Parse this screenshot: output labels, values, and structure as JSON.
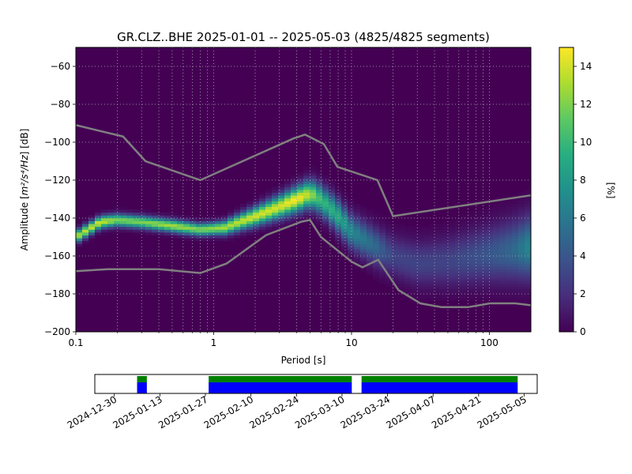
{
  "chart_data": [
    {
      "type": "heatmap",
      "title": "GR.CLZ..BHE   2025-01-01 -- 2025-05-03  (4825/4825 segments)",
      "xlabel": "Period [s]",
      "ylabel_prefix": "Amplitude [",
      "ylabel_math": "m²/s⁴/Hz",
      "ylabel_suffix": "] [dB]",
      "xscale": "log",
      "xlim": [
        0.1,
        200
      ],
      "ylim": [
        -200,
        -50
      ],
      "x_ticks": [
        0.1,
        1,
        10,
        100
      ],
      "x_tick_labels": [
        "0.1",
        "1",
        "10",
        "100"
      ],
      "y_ticks": [
        -200,
        -180,
        -160,
        -140,
        -120,
        -100,
        -80,
        -60
      ],
      "y_tick_labels": [
        "−200",
        "−180",
        "−160",
        "−140",
        "−120",
        "−100",
        "−80",
        "−60"
      ],
      "grid": true,
      "colormap": "viridis",
      "colorbar": {
        "label": "[%]",
        "range": [
          0,
          15
        ],
        "ticks": [
          0,
          2,
          4,
          6,
          8,
          10,
          12,
          14
        ],
        "tick_labels": [
          "0",
          "2",
          "4",
          "6",
          "8",
          "10",
          "12",
          "14"
        ]
      },
      "mode_curve": {
        "period": [
          0.1,
          0.15,
          0.2,
          0.3,
          0.5,
          0.8,
          1.2,
          2,
          3,
          4,
          5,
          6,
          8,
          10,
          15,
          20,
          30,
          50,
          100,
          150,
          200
        ],
        "amplitude_db": [
          -150,
          -142,
          -141,
          -142,
          -144,
          -146,
          -145,
          -139,
          -134,
          -130,
          -127,
          -130,
          -139,
          -147,
          -155,
          -160,
          -164,
          -163,
          -159,
          -157,
          -155
        ],
        "peak_percent": [
          13,
          14,
          12,
          12,
          13,
          12,
          13,
          14,
          14,
          15,
          13,
          10,
          9,
          7,
          5,
          3,
          3,
          3,
          4,
          5,
          7
        ]
      },
      "nlnm": {
        "period": [
          0.1,
          0.17,
          0.4,
          0.8,
          1.24,
          2.4,
          4.3,
          5.0,
          6.0,
          10.0,
          12.0,
          15.6,
          21.9,
          31.6,
          45.0,
          70.0,
          101.0,
          154.0,
          200.0
        ],
        "amplitude_db": [
          -168,
          -167,
          -167,
          -169,
          -164,
          -149,
          -142,
          -141,
          -150,
          -163,
          -166,
          -162,
          -178,
          -185,
          -187,
          -187,
          -185,
          -185,
          -186
        ]
      },
      "nhnm": {
        "period": [
          0.1,
          0.22,
          0.32,
          0.8,
          3.8,
          4.6,
          6.3,
          7.9,
          15.4,
          20.0,
          200.0
        ],
        "amplitude_db": [
          -91,
          -97,
          -110,
          -120,
          -98,
          -96,
          -101,
          -113,
          -120,
          -139,
          -128
        ]
      }
    },
    {
      "type": "timeline",
      "x_tick_labels": [
        "2024-12-30",
        "2025-01-13",
        "2025-01-27",
        "2025-02-10",
        "2025-02-24",
        "2025-03-10",
        "2025-03-24",
        "2025-04-07",
        "2025-04-21",
        "2025-05-05"
      ],
      "x_ticks": [
        "2024-12-30",
        "2025-01-13",
        "2025-01-27",
        "2025-02-10",
        "2025-02-24",
        "2025-03-10",
        "2025-03-24",
        "2025-04-07",
        "2025-04-21",
        "2025-05-05"
      ],
      "xlim": [
        "2024-12-24",
        "2025-05-09"
      ],
      "data_segments": [
        [
          "2025-01-06",
          "2025-01-09"
        ],
        [
          "2025-01-28",
          "2025-03-13"
        ],
        [
          "2025-03-16",
          "2025-05-03"
        ]
      ],
      "colors": {
        "available": "#0000ff",
        "used": "#008000"
      }
    }
  ]
}
